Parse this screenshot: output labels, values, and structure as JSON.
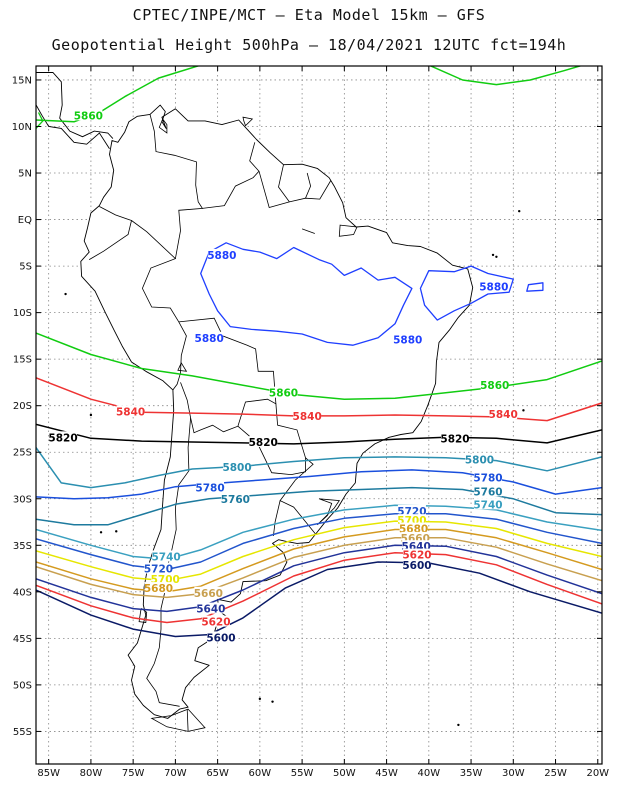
{
  "header": {
    "line1": "CPTEC/INPE/MCT –  Eta Model 15km – GFS",
    "line2": "Geopotential Height 500hPa – 18/04/2021 12UTC fct=194h"
  },
  "map": {
    "lat_labels": [
      "15N",
      "10N",
      "5N",
      "EQ",
      "5S",
      "10S",
      "15S",
      "20S",
      "25S",
      "30S",
      "35S",
      "40S",
      "45S",
      "50S",
      "55S"
    ],
    "lon_labels": [
      "85W",
      "80W",
      "75W",
      "70W",
      "65W",
      "60W",
      "55W",
      "50W",
      "45W",
      "40W",
      "35W",
      "30W",
      "25W",
      "20W"
    ],
    "lat_range": [
      16.5,
      -58.5
    ],
    "lon_range": [
      -86.5,
      -19.5
    ]
  },
  "colors": {
    "c5880": "#1f3fff",
    "c5860": "#11cc11",
    "c5840": "#ee3333",
    "c5820": "#000000",
    "c5800": "#2b8fb0",
    "c5780": "#1a4fdd",
    "c5760": "#1d7a9e",
    "c5740": "#3aa0c0",
    "c5720": "#2255cc",
    "c5700": "#e6e600",
    "c5680": "#d49a1f",
    "c5660": "#c8a050",
    "c5640": "#223399",
    "c5620": "#ee3333",
    "c5600": "#0a1a66",
    "coast": "#000000",
    "grid": "#888888"
  },
  "contours": [
    {
      "value": "5880",
      "color_key": "c5880",
      "labels": [
        {
          "text": "5880",
          "lon": -64.5,
          "lat": -3.8
        },
        {
          "text": "5880",
          "lon": -66,
          "lat": -12.7
        },
        {
          "text": "5880",
          "lon": -42.5,
          "lat": -12.9
        },
        {
          "text": "5880",
          "lon": -32.3,
          "lat": -7.2
        }
      ]
    },
    {
      "value": "5860",
      "color_key": "c5860",
      "labels": [
        {
          "text": "5860",
          "lon": -80.3,
          "lat": 11.2
        },
        {
          "text": "5860",
          "lon": -57.2,
          "lat": -18.6
        },
        {
          "text": "5860",
          "lon": -32.2,
          "lat": -17.8
        }
      ]
    },
    {
      "value": "5840",
      "color_key": "c5840",
      "labels": [
        {
          "text": "5840",
          "lon": -75.3,
          "lat": -20.6
        },
        {
          "text": "5840",
          "lon": -54.4,
          "lat": -21.1
        },
        {
          "text": "5840",
          "lon": -31.2,
          "lat": -20.9
        }
      ]
    },
    {
      "value": "5820",
      "color_key": "c5820",
      "labels": [
        {
          "text": "5820",
          "lon": -83.3,
          "lat": -23.4
        },
        {
          "text": "5820",
          "lon": -59.6,
          "lat": -23.9
        },
        {
          "text": "5820",
          "lon": -36.9,
          "lat": -23.5
        }
      ]
    },
    {
      "value": "5800",
      "color_key": "c5800",
      "labels": [
        {
          "text": "5800",
          "lon": -62.7,
          "lat": -26.6
        },
        {
          "text": "5800",
          "lon": -34.0,
          "lat": -25.8
        }
      ]
    },
    {
      "value": "5780",
      "color_key": "c5780",
      "labels": [
        {
          "text": "5780",
          "lon": -65.9,
          "lat": -28.8
        },
        {
          "text": "5780",
          "lon": -33.0,
          "lat": -27.7
        }
      ]
    },
    {
      "value": "5760",
      "color_key": "c5760",
      "labels": [
        {
          "text": "5760",
          "lon": -62.9,
          "lat": -30.0
        },
        {
          "text": "5760",
          "lon": -33.0,
          "lat": -29.2
        }
      ]
    },
    {
      "value": "5740",
      "color_key": "c5740",
      "labels": [
        {
          "text": "5740",
          "lon": -71.1,
          "lat": -36.2
        },
        {
          "text": "5740",
          "lon": -33.0,
          "lat": -30.6
        }
      ]
    },
    {
      "value": "5720",
      "color_key": "c5720",
      "labels": [
        {
          "text": "5720",
          "lon": -72.0,
          "lat": -37.5
        },
        {
          "text": "5720",
          "lon": -42.0,
          "lat": -31.3
        }
      ]
    },
    {
      "value": "5700",
      "color_key": "c5700",
      "labels": [
        {
          "text": "5700",
          "lon": -71.2,
          "lat": -38.6
        },
        {
          "text": "5700",
          "lon": -42.0,
          "lat": -32.3
        }
      ]
    },
    {
      "value": "5680",
      "color_key": "c5680",
      "labels": [
        {
          "text": "5680",
          "lon": -72.0,
          "lat": -39.6
        },
        {
          "text": "5680",
          "lon": -41.8,
          "lat": -33.2
        }
      ]
    },
    {
      "value": "5660",
      "color_key": "c5660",
      "labels": [
        {
          "text": "5660",
          "lon": -66.1,
          "lat": -40.1
        },
        {
          "text": "5660",
          "lon": -41.6,
          "lat": -34.2
        }
      ]
    },
    {
      "value": "5640",
      "color_key": "c5640",
      "labels": [
        {
          "text": "5640",
          "lon": -65.8,
          "lat": -41.8
        },
        {
          "text": "5640",
          "lon": -41.5,
          "lat": -35.1
        }
      ]
    },
    {
      "value": "5620",
      "color_key": "c5620",
      "labels": [
        {
          "text": "5620",
          "lon": -65.2,
          "lat": -43.2
        },
        {
          "text": "5620",
          "lon": -41.4,
          "lat": -36.0
        }
      ]
    },
    {
      "value": "5600",
      "color_key": "c5600",
      "labels": [
        {
          "text": "5600",
          "lon": -64.6,
          "lat": -44.9
        },
        {
          "text": "5600",
          "lon": -41.4,
          "lat": -37.1
        }
      ]
    }
  ]
}
